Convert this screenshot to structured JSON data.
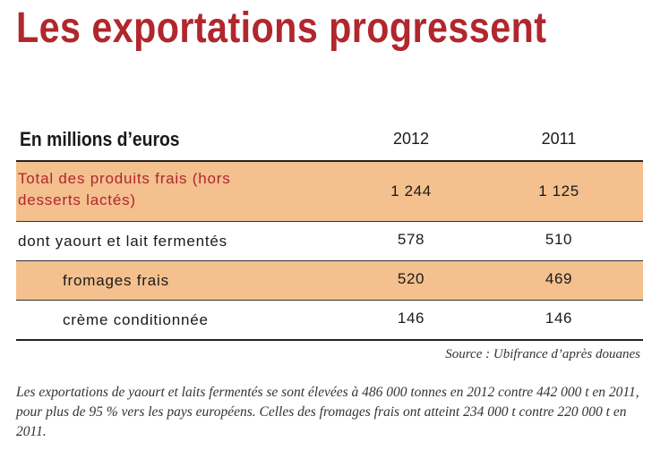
{
  "title": "Les exportations progressent",
  "chart_data": {
    "type": "table",
    "columns": [
      "En millions d’euros",
      "2012",
      "2011"
    ],
    "rows": [
      {
        "label": "Total des produits frais (hors desserts lactés)",
        "values": [
          "1 244",
          "1 125"
        ]
      },
      {
        "label": "dont yaourt et lait fermentés",
        "values": [
          "578",
          "510"
        ]
      },
      {
        "label": "fromages frais",
        "values": [
          "520",
          "469"
        ]
      },
      {
        "label": "crème conditionnée",
        "values": [
          "146",
          "146"
        ]
      }
    ],
    "row_shading_color": "#f3c08e",
    "highlight_text_color": "#b0272d"
  },
  "source": "Source : Ubifrance d’après douanes",
  "caption": "Les exportations de yaourt et laits fermentés se sont élevées à 486 000 tonnes en 2012 contre 442 000 t en 2011, pour plus de 95 % vers les pays européens. Celles des fromages frais ont atteint 234 000 t contre 220 000 t en 2011."
}
